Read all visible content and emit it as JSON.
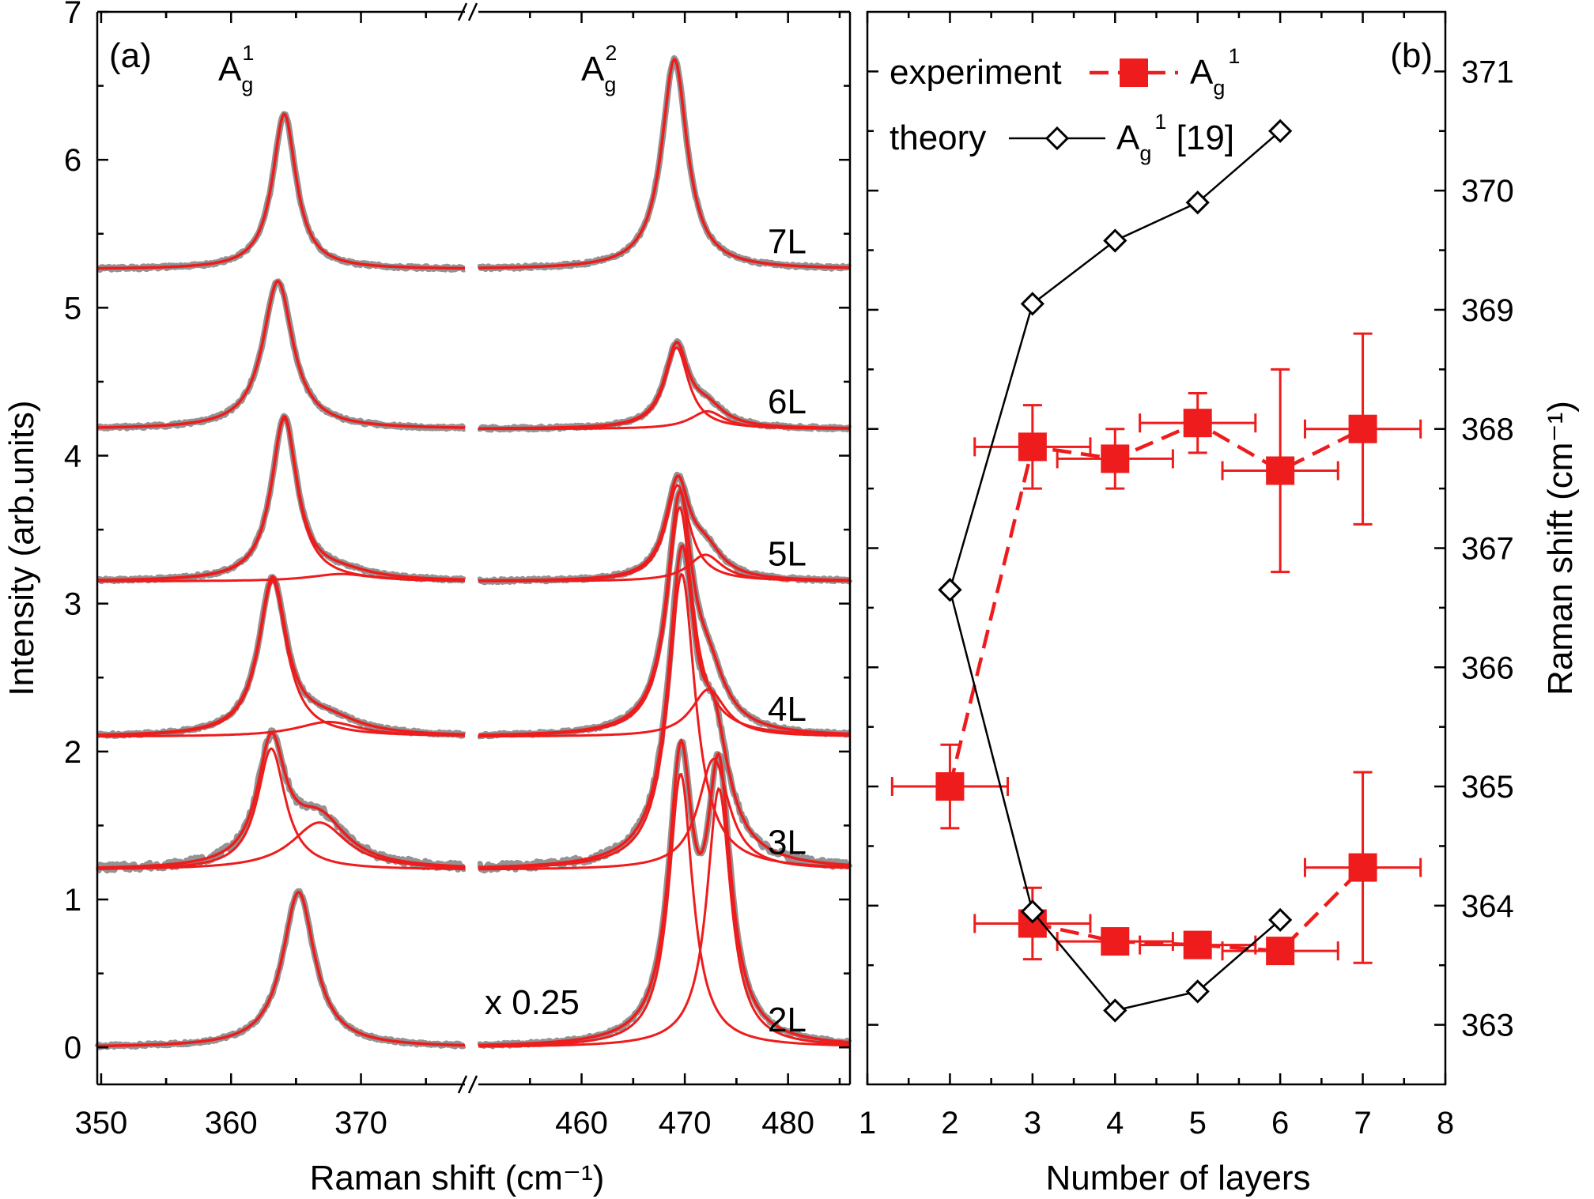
{
  "colors": {
    "fit": "#ee1c1c",
    "data": "#808080",
    "axis": "#000000",
    "theory_marker_fill": "#ffffff"
  },
  "chart_data": [
    {
      "panel": "(a)",
      "type": "line",
      "xlabel": "Raman shift (cm⁻¹)",
      "ylabel": "Intensity (arb.units)",
      "ylim": [
        -0.25,
        7
      ],
      "y_ticks": [
        "0",
        "1",
        "2",
        "3",
        "4",
        "5",
        "6",
        "7"
      ],
      "axis_break": "//",
      "segments": [
        {
          "xlim": [
            349.7,
            378
          ],
          "x_ticks": [
            "350",
            "360",
            "370"
          ]
        },
        {
          "xlim": [
            450,
            486
          ],
          "x_ticks": [
            "460",
            "470",
            "480"
          ]
        }
      ],
      "peak_labels": [
        {
          "base": "A",
          "sub": "g",
          "sup": "1"
        },
        {
          "base": "A",
          "sub": "g",
          "sup": "2"
        }
      ],
      "annotation": "x 0.25",
      "spectra": [
        {
          "label": "2L",
          "offset": 0.0,
          "peaks": [
            {
              "x": 365.2,
              "height": 1.05,
              "width": 1.5
            },
            {
              "x": 469.6,
              "height": 1.85,
              "width": 1.4
            },
            {
              "x": 473.3,
              "height": 1.75,
              "width": 1.4
            }
          ]
        },
        {
          "label": "3L",
          "offset": 1.2,
          "peaks": [
            {
              "x": 363.1,
              "height": 0.82,
              "width": 1.3
            },
            {
              "x": 366.8,
              "height": 0.32,
              "width": 2.6
            },
            {
              "x": 469.7,
              "height": 2.0,
              "width": 1.6
            },
            {
              "x": 472.8,
              "height": 0.75,
              "width": 1.8
            }
          ]
        },
        {
          "label": "4L",
          "offset": 2.1,
          "peaks": [
            {
              "x": 363.2,
              "height": 1.05,
              "width": 1.3
            },
            {
              "x": 367.5,
              "height": 0.1,
              "width": 3.0
            },
            {
              "x": 469.5,
              "height": 1.55,
              "width": 1.5
            },
            {
              "x": 472.3,
              "height": 0.32,
              "width": 2.0
            }
          ]
        },
        {
          "label": "5L",
          "offset": 3.15,
          "peaks": [
            {
              "x": 364.1,
              "height": 1.1,
              "width": 1.2
            },
            {
              "x": 368.5,
              "height": 0.05,
              "width": 3.0
            },
            {
              "x": 469.3,
              "height": 0.65,
              "width": 1.4
            },
            {
              "x": 472.0,
              "height": 0.18,
              "width": 2.0
            }
          ]
        },
        {
          "label": "6L",
          "offset": 4.18,
          "peaks": [
            {
              "x": 363.6,
              "height": 1.0,
              "width": 1.4
            },
            {
              "x": 469.2,
              "height": 0.55,
              "width": 1.4
            },
            {
              "x": 472.2,
              "height": 0.12,
              "width": 2.0
            }
          ]
        },
        {
          "label": "7L",
          "offset": 5.26,
          "peaks": [
            {
              "x": 364.1,
              "height": 1.05,
              "width": 1.1
            },
            {
              "x": 469.0,
              "height": 1.42,
              "width": 1.5
            }
          ]
        }
      ]
    },
    {
      "panel": "(b)",
      "type": "scatter",
      "xlabel": "Number of layers",
      "ylabel": "Raman shift (cm⁻¹)",
      "xlim": [
        1,
        8
      ],
      "ylim": [
        362.5,
        371.5
      ],
      "x_ticks": [
        "1",
        "2",
        "3",
        "4",
        "5",
        "6",
        "7",
        "8"
      ],
      "y_ticks": [
        "363",
        "364",
        "365",
        "366",
        "367",
        "368",
        "369",
        "370",
        "371"
      ],
      "legend": [
        {
          "prefix": "experiment",
          "base": "A",
          "sub": "g",
          "sup": "1",
          "suffix": ""
        },
        {
          "prefix": "theory",
          "base": "A",
          "sub": "g",
          "sup": "1",
          "suffix": " [19]"
        }
      ],
      "series": [
        {
          "name": "experiment",
          "style": "dashed",
          "marker": "square",
          "x": [
            2,
            3,
            4,
            5,
            6,
            7
          ],
          "y": [
            365.0,
            367.85,
            367.75,
            368.05,
            367.65,
            368.0
          ],
          "xerr": 0.7,
          "yerr": [
            0.35,
            0.35,
            0.25,
            0.25,
            0.85,
            0.8
          ]
        },
        {
          "style": "dashed",
          "marker": "square",
          "x": [
            3,
            4,
            5,
            6,
            7
          ],
          "y": [
            363.85,
            363.7,
            363.67,
            363.62,
            364.32
          ],
          "xerr": 0.7,
          "yerr": [
            0.3,
            0.05,
            0.05,
            0.05,
            0.8
          ]
        },
        {
          "name": "theory",
          "style": "solid",
          "marker": "diamond",
          "x": [
            2,
            3,
            4,
            5,
            6
          ],
          "y": [
            366.65,
            369.05,
            369.58,
            369.9,
            370.5
          ]
        },
        {
          "style": "solid",
          "marker": "diamond",
          "x": [
            2,
            3,
            4,
            5,
            6
          ],
          "y": [
            366.65,
            363.95,
            363.12,
            363.28,
            363.88
          ]
        }
      ]
    }
  ]
}
